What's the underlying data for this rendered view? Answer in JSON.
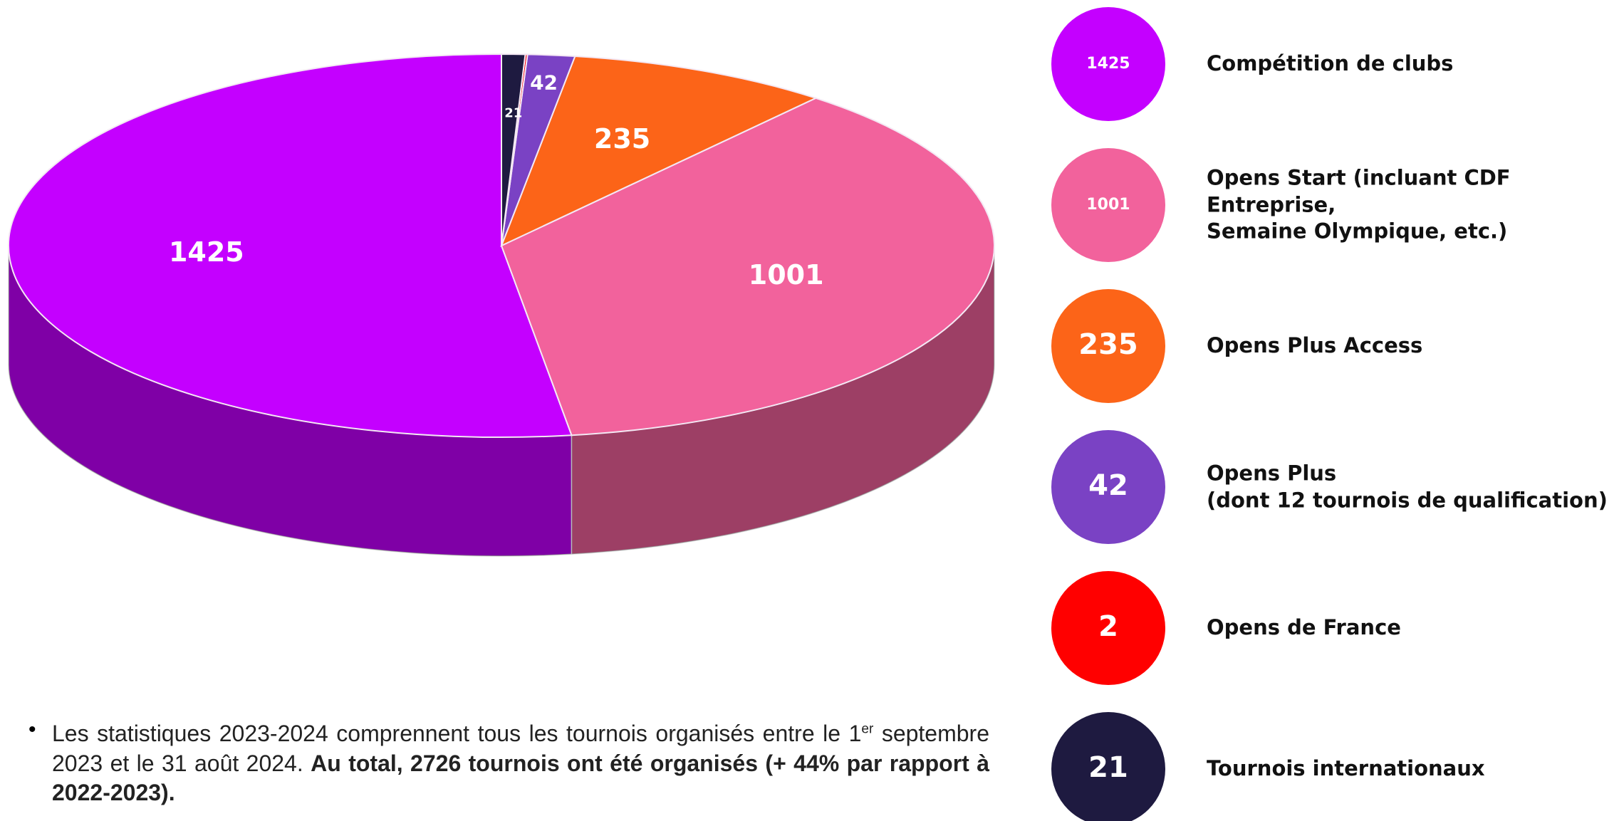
{
  "chart_data": {
    "type": "pie3d",
    "categories": [
      "Compétition de clubs",
      "Opens Start (incluant CDF Entreprise,\nSemaine Olympique, etc.)",
      "Opens Plus Access",
      "Opens Plus\n(dont 12 tournois de qualification)",
      "Opens de France",
      "Tournois internationaux"
    ],
    "values": [
      1425,
      1001,
      235,
      42,
      2,
      21
    ],
    "colors": [
      "#c400ff",
      "#f2629c",
      "#fc6418",
      "#7a42c4",
      "#ff0000",
      "#1e1a40"
    ]
  },
  "note": [
    "Les statistiques 2023-2024 comprennent tous les tournois organisés entre le 1",
    "er",
    " septembre 2023 et le 31 août 2024. ",
    "Au total, 2726 tournois ont été organisés (+ 44% par rapport à 2022-2023)."
  ]
}
